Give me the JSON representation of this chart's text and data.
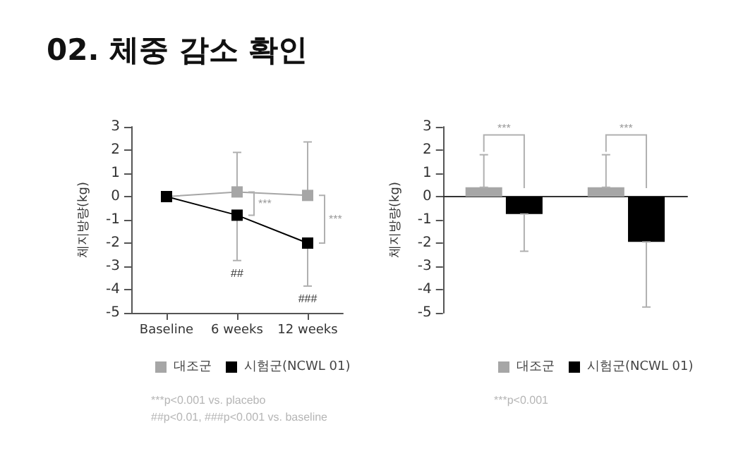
{
  "chart_data": [
    {
      "type": "line",
      "title": "02. 체중 감소 확인",
      "ylabel": "체지방량(kg)",
      "categories": [
        "Baseline",
        "6 weeks",
        "12 weeks"
      ],
      "series": [
        {
          "name": "대조군",
          "color": "#a6a6a6",
          "values": [
            0,
            0.2,
            0.05
          ],
          "errors": [
            null,
            [
              0.2,
              1.9
            ],
            [
              0.05,
              2.35
            ]
          ]
        },
        {
          "name": "시험군(NCWL 01)",
          "color": "#000000",
          "values": [
            0,
            -0.8,
            -2.0
          ],
          "errors": [
            null,
            [
              -2.75,
              -0.8
            ],
            [
              -3.85,
              -2.0
            ]
          ]
        }
      ],
      "ylim": [
        -5,
        3
      ],
      "yticks": [
        -5,
        -4,
        -3,
        -2,
        -1,
        0,
        1,
        2,
        3
      ],
      "marker": "square",
      "legend": "bottom",
      "annotations": [
        {
          "text": "***",
          "x": "6 weeks",
          "y": 0.2
        },
        {
          "text": "***",
          "x": "12 weeks",
          "y": 0.05
        },
        {
          "text": "##",
          "x": "6 weeks",
          "y": -2.75
        },
        {
          "text": "###",
          "x": "12 weeks",
          "y": -3.85
        },
        "***p<0.001 vs. placebo",
        "##p<0.01, ###p<0.001 vs. baseline"
      ]
    },
    {
      "type": "bar",
      "ylabel": "체지방량(kg)",
      "categories": [
        null,
        null
      ],
      "series": [
        {
          "name": "대조군",
          "color": "#a6a6a6",
          "values": [
            0.4,
            0.4
          ],
          "errors": [
            [
              0.4,
              1.8
            ],
            [
              0.4,
              1.8
            ]
          ]
        },
        {
          "name": "시험군(NCWL 01)",
          "color": "#000000",
          "values": [
            -0.75,
            -1.95
          ],
          "errors": [
            [
              -2.35,
              -0.75
            ],
            [
              -4.75,
              -1.95
            ]
          ]
        }
      ],
      "ylim": [
        -5,
        3
      ],
      "yticks": [
        -5,
        -4,
        -3,
        -2,
        -1,
        0,
        1,
        2,
        3
      ],
      "tick_labels": "y",
      "legend": "bottom",
      "annotations": [
        "***",
        "***",
        "***p<0.001"
      ]
    }
  ]
}
